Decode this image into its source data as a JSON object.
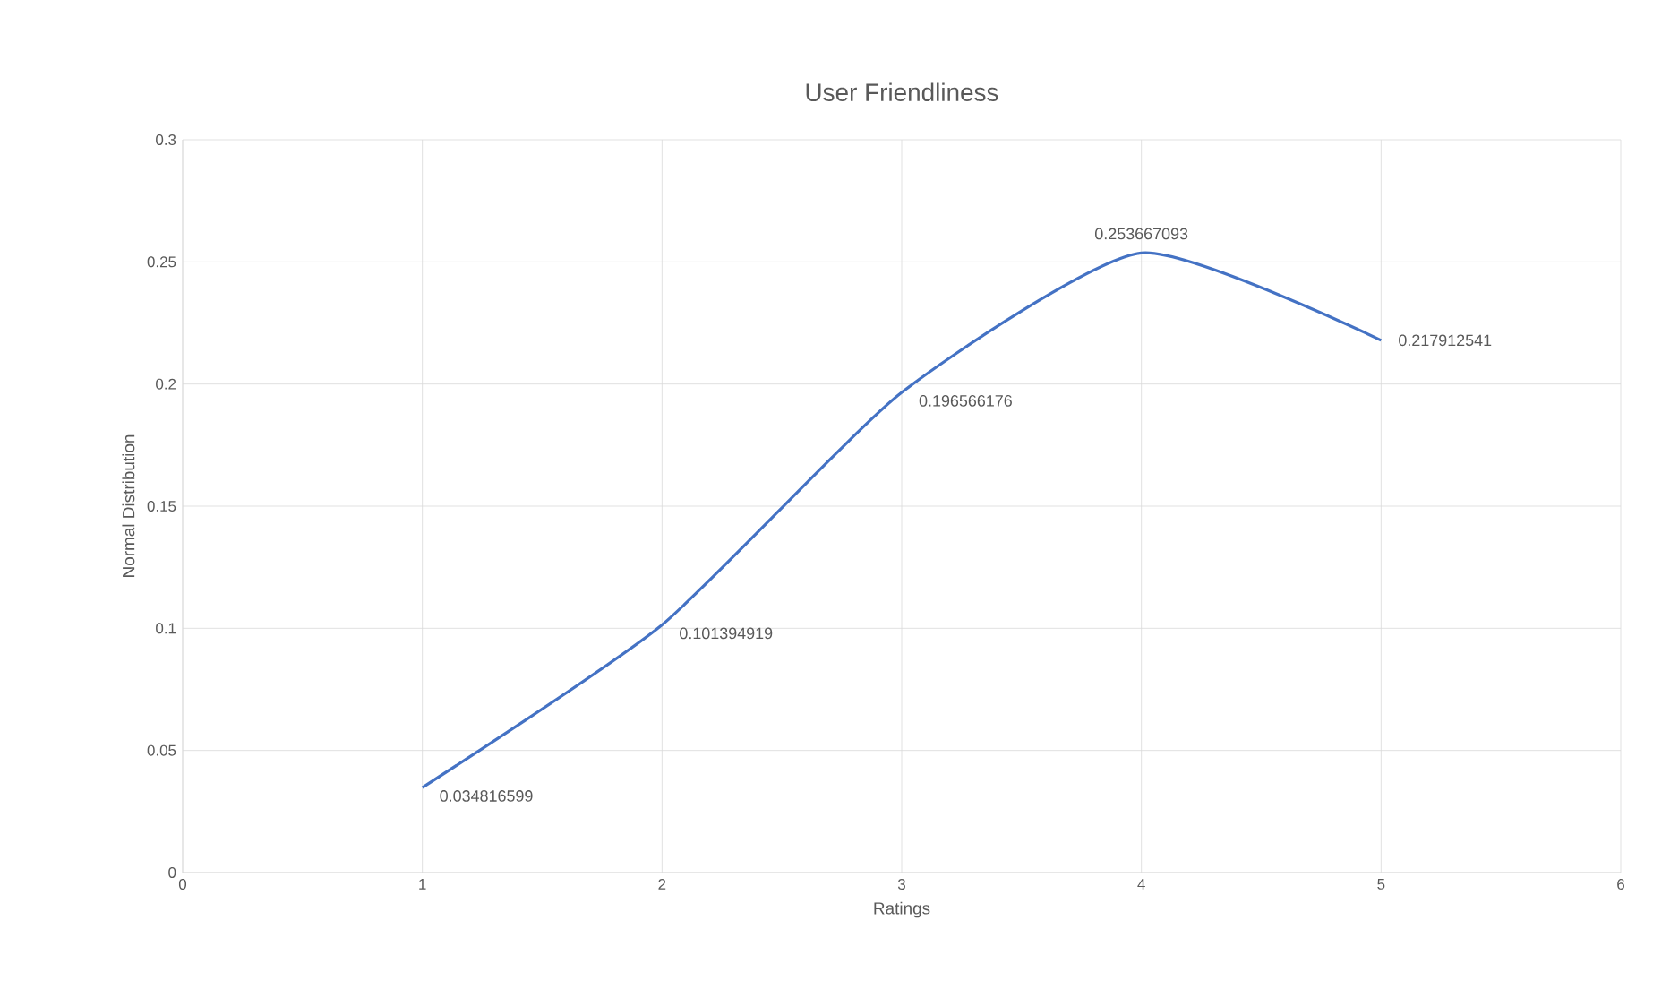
{
  "chart_data": {
    "type": "line",
    "title": "User Friendliness",
    "xlabel": "Ratings",
    "ylabel": "Normal Distribution",
    "x": [
      1,
      2,
      3,
      4,
      5
    ],
    "series": [
      {
        "color": "#4472c4",
        "values": [
          0.034816599,
          0.101394919,
          0.196566176,
          0.253667093,
          0.217912541
        ]
      }
    ],
    "xlim": [
      0,
      6
    ],
    "xticks": [
      0,
      1,
      2,
      3,
      4,
      5,
      6
    ],
    "ylim": [
      0,
      0.3
    ],
    "yticks": [
      0,
      0.05,
      0.1,
      0.15,
      0.2,
      0.25,
      0.3
    ],
    "grid": true,
    "data_labels": true,
    "marker": "none",
    "line_style": "solid"
  }
}
